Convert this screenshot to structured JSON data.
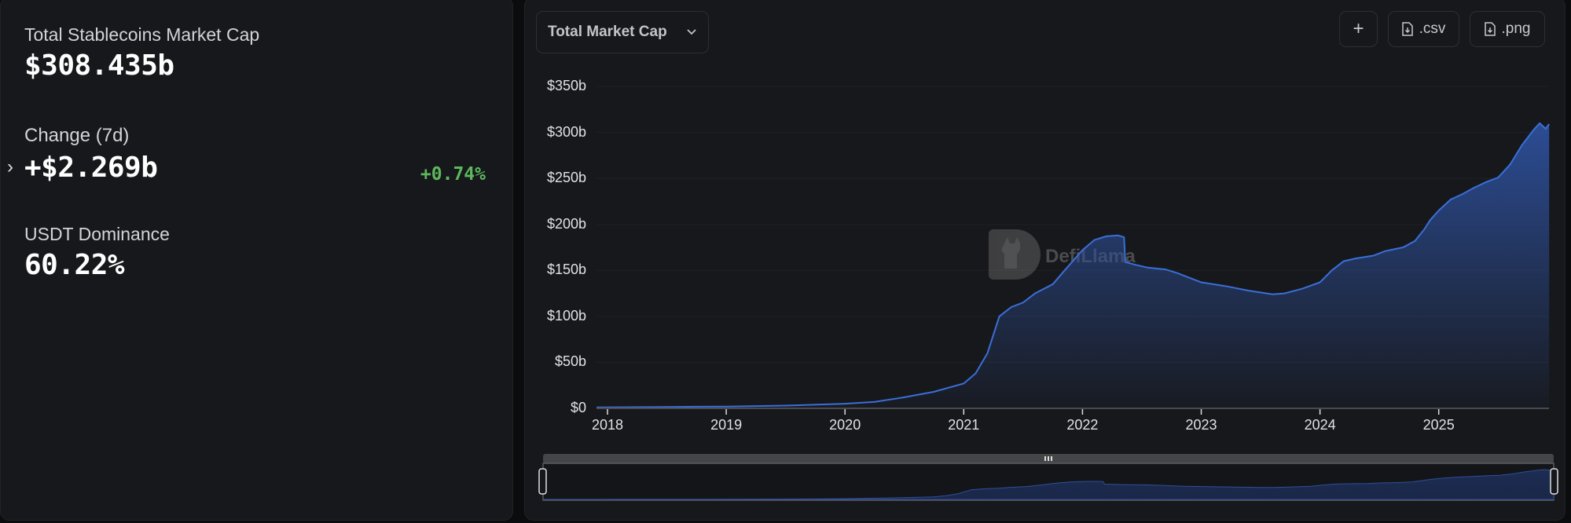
{
  "summary": {
    "market_cap_label": "Total Stablecoins Market Cap",
    "market_cap_value": "$308.435b",
    "change_label": "Change (7d)",
    "change_value": "+$2.269b",
    "change_pct": "+0.74%",
    "dominance_label": "USDT Dominance",
    "dominance_value": "60.22%",
    "expand_icon": "chevron-right-icon"
  },
  "toolbar": {
    "dropdown_label": "Total Market Cap",
    "dropdown_icon": "chevron-down-icon",
    "add_label": "+",
    "csv_label": ".csv",
    "png_label": ".png",
    "download_icon": "file-download-icon"
  },
  "watermark": "DefiLlama",
  "colors": {
    "line": "#3a6fd8",
    "fill_top": "#2d4f9a",
    "positive": "#5cb85c"
  },
  "chart_data": {
    "type": "area",
    "title": "Total Market Cap",
    "xlabel": "",
    "ylabel": "",
    "ylim": [
      0,
      350
    ],
    "y_ticks": [
      "$0",
      "$50b",
      "$100b",
      "$150b",
      "$200b",
      "$250b",
      "$300b",
      "$350b"
    ],
    "x_ticks": [
      "2018",
      "2019",
      "2020",
      "2021",
      "2022",
      "2023",
      "2024",
      "2025"
    ],
    "grid": true,
    "series": [
      {
        "name": "Total Stablecoins Market Cap ($b)",
        "x": [
          2017.9,
          2018.5,
          2019.0,
          2019.5,
          2020.0,
          2020.25,
          2020.5,
          2020.75,
          2021.0,
          2021.1,
          2021.2,
          2021.3,
          2021.4,
          2021.5,
          2021.6,
          2021.75,
          2021.85,
          2022.0,
          2022.1,
          2022.2,
          2022.3,
          2022.35,
          2022.36,
          2022.45,
          2022.55,
          2022.7,
          2022.8,
          2023.0,
          2023.2,
          2023.4,
          2023.6,
          2023.7,
          2023.85,
          2024.0,
          2024.1,
          2024.2,
          2024.3,
          2024.45,
          2024.55,
          2024.7,
          2024.8,
          2024.88,
          2024.93,
          2025.0,
          2025.1,
          2025.2,
          2025.3,
          2025.4,
          2025.5,
          2025.6,
          2025.7,
          2025.8,
          2025.85,
          2025.9,
          2025.93
        ],
        "values": [
          1,
          1.5,
          2,
          3,
          5,
          7,
          12,
          18,
          27,
          38,
          60,
          100,
          110,
          115,
          125,
          135,
          150,
          172,
          183,
          187,
          188,
          186,
          159,
          156,
          153,
          151,
          147,
          137,
          133,
          128,
          124,
          125,
          130,
          137,
          150,
          160,
          163,
          166,
          171,
          175,
          182,
          195,
          205,
          215,
          227,
          233,
          240,
          246,
          251,
          265,
          286,
          303,
          310,
          304,
          309
        ]
      }
    ]
  },
  "navigator": {
    "grip_icon": "drag-grip-icon",
    "left_handle": "range-handle-left",
    "right_handle": "range-handle-right"
  }
}
